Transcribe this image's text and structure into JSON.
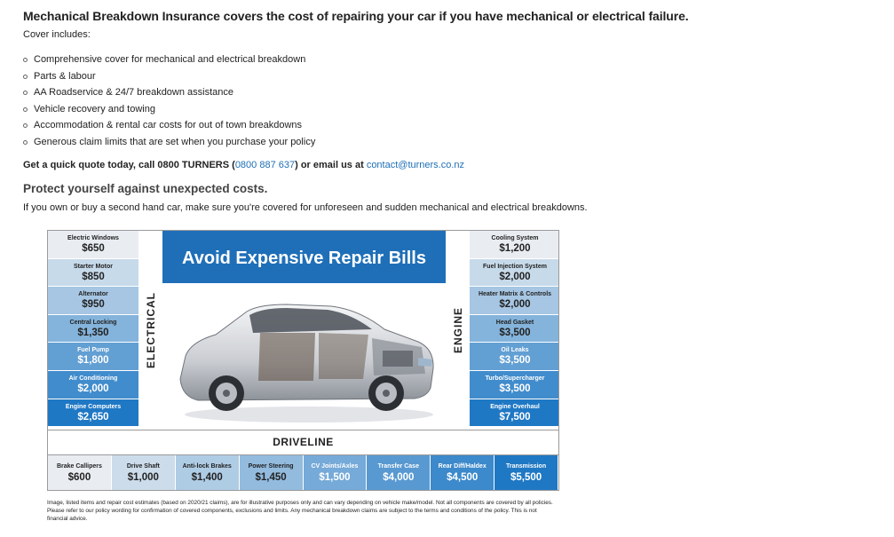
{
  "headline": "Mechanical Breakdown Insurance covers the cost of repairing your car if you have mechanical or electrical failure.",
  "cover_label": "Cover includes:",
  "cover_items": [
    "Comprehensive cover for mechanical and electrical breakdown",
    "Parts & labour",
    "AA Roadservice & 24/7 breakdown assistance",
    "Vehicle recovery and towing",
    "Accommodation & rental car costs for out of town breakdowns",
    "Generous claim limits that are set when you purchase your policy"
  ],
  "quote": {
    "prefix": "Get a quick quote today, call 0800 TURNERS (",
    "phone": "0800 887 637",
    "middle": ") or email us at ",
    "email": "contact@turners.co.nz"
  },
  "protect_heading": "Protect yourself against unexpected costs.",
  "protect_desc": "If you own or buy a second hand car, make sure you're covered for unforeseen and sudden mechanical and electrical breakdowns.",
  "infographic": {
    "banner": "Avoid Expensive Repair Bills",
    "electrical_label": "ELECTRICAL",
    "engine_label": "ENGINE",
    "driveline_label": "DRIVELINE",
    "left": [
      {
        "label": "Electric Windows",
        "amount": "$650"
      },
      {
        "label": "Starter Motor",
        "amount": "$850"
      },
      {
        "label": "Alternator",
        "amount": "$950"
      },
      {
        "label": "Central Locking",
        "amount": "$1,350"
      },
      {
        "label": "Fuel Pump",
        "amount": "$1,800"
      },
      {
        "label": "Air Conditioning",
        "amount": "$2,000"
      },
      {
        "label": "Engine Computers",
        "amount": "$2,650"
      }
    ],
    "right": [
      {
        "label": "Cooling System",
        "amount": "$1,200"
      },
      {
        "label": "Fuel Injection System",
        "amount": "$2,000"
      },
      {
        "label": "Heater Matrix & Controls",
        "amount": "$2,000"
      },
      {
        "label": "Head Gasket",
        "amount": "$3,500"
      },
      {
        "label": "Oil Leaks",
        "amount": "$3,500"
      },
      {
        "label": "Turbo/Supercharger",
        "amount": "$3,500"
      },
      {
        "label": "Engine Overhaul",
        "amount": "$7,500"
      }
    ],
    "bottom": [
      {
        "label": "Brake Callipers",
        "amount": "$600"
      },
      {
        "label": "Drive Shaft",
        "amount": "$1,000"
      },
      {
        "label": "Anti-lock Brakes",
        "amount": "$1,400"
      },
      {
        "label": "Power Steering",
        "amount": "$1,450"
      },
      {
        "label": "CV Joints/Axles",
        "amount": "$1,500"
      },
      {
        "label": "Transfer Case",
        "amount": "$4,000"
      },
      {
        "label": "Rear Diff/Haldex",
        "amount": "$4,500"
      },
      {
        "label": "Transmission",
        "amount": "$5,500"
      }
    ]
  },
  "disclaimer": "Image, listed items and repair cost estimates (based on 2020/21 claims), are for illustrative purposes only and can vary depending on vehicle make/model. Not all components are covered by all policies. Please refer to our policy wording for confirmation of covered components, exclusions and limits. Any mechanical breakdown claims are subject to the terms and conditions of the policy. This is not financial advice.",
  "colors": {
    "link": "#1e6fb5",
    "banner": "#1f6fb8",
    "gradient_light": "#e9edf2",
    "gradient_dark": "#1f78c4"
  }
}
